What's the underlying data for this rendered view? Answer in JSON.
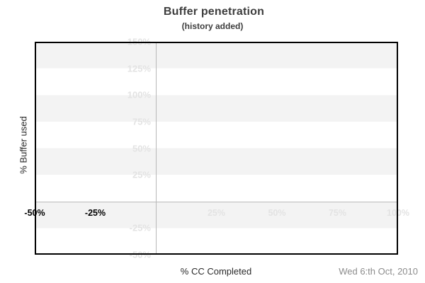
{
  "header": {
    "title": "Buffer penetration",
    "subtitle": "(history added)"
  },
  "axes": {
    "x_label": "% CC Completed",
    "y_label": "% Buffer used"
  },
  "footer": {
    "date": "Wed 6:th Oct, 2010"
  },
  "colors": {
    "background": "#ffffff",
    "stripe_band": "#f3f3f3",
    "faint_tick_label": "#e3e3e3",
    "emphasis_tick_label": "#000000",
    "zero_gridline": "#b8b8b8",
    "plot_border": "#000000",
    "title_text": "#3d3d3d",
    "axis_title_text": "#2a2a2a",
    "date_text": "#8c8c8c"
  },
  "chart_data": {
    "type": "line",
    "title": "Buffer penetration",
    "subtitle": "(history added)",
    "xlabel": "% CC Completed",
    "ylabel": "% Buffer used",
    "xlim": [
      -50,
      100
    ],
    "ylim": [
      -50,
      150
    ],
    "x_ticks": [
      {
        "value": -50,
        "label": "-50%",
        "emphasis": true
      },
      {
        "value": -25,
        "label": "-25%",
        "emphasis": true
      },
      {
        "value": 25,
        "label": "25%",
        "emphasis": false
      },
      {
        "value": 50,
        "label": "50%",
        "emphasis": false
      },
      {
        "value": 75,
        "label": "75%",
        "emphasis": false
      },
      {
        "value": 100,
        "label": "100%",
        "emphasis": false
      }
    ],
    "y_ticks": [
      {
        "value": 150,
        "label": "150%"
      },
      {
        "value": 125,
        "label": "125%"
      },
      {
        "value": 100,
        "label": "100%"
      },
      {
        "value": 75,
        "label": "75%"
      },
      {
        "value": 50,
        "label": "50%"
      },
      {
        "value": 25,
        "label": "25%"
      },
      {
        "value": -25,
        "label": "-25%"
      },
      {
        "value": -50,
        "label": "-50%"
      }
    ],
    "zero_gridlines": {
      "vertical_at_x": 0,
      "horizontal_at_y": 0
    },
    "grid": "alternating horizontal gray/white bands every 25%, gray band at top",
    "legend": "none",
    "series": [],
    "annotations": [
      "Wed 6:th Oct, 2010"
    ]
  }
}
